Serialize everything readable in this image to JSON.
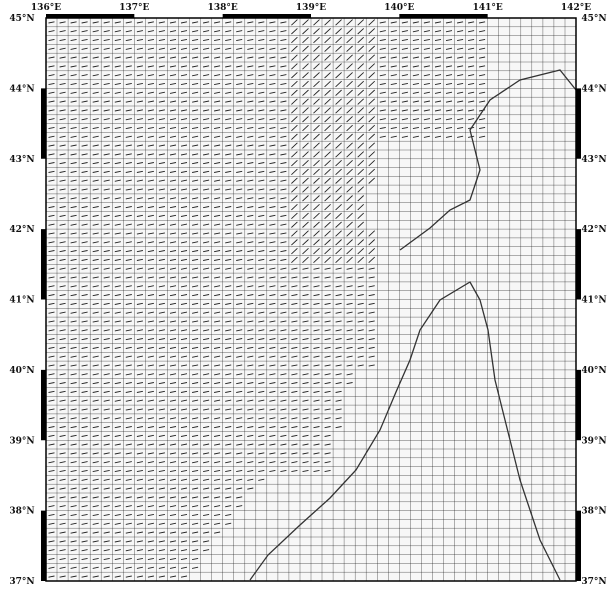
{
  "map": {
    "projection": "lat-lon grid",
    "longitude_range": [
      136,
      142
    ],
    "latitude_range": [
      37,
      45
    ],
    "longitude_ticks": [
      "136°E",
      "137°E",
      "138°E",
      "139°E",
      "140°E",
      "141°E",
      "142°E"
    ],
    "latitude_ticks": [
      "45°N",
      "44°N",
      "43°N",
      "42°N",
      "41°N",
      "40°N",
      "39°N",
      "38°N",
      "37°N"
    ],
    "grid_cell_degrees": 0.125,
    "colors": {
      "grid_line": "#1a1a1a",
      "frame": "#000000",
      "background": "#ffffff",
      "arrow_mark": "#222222"
    }
  }
}
